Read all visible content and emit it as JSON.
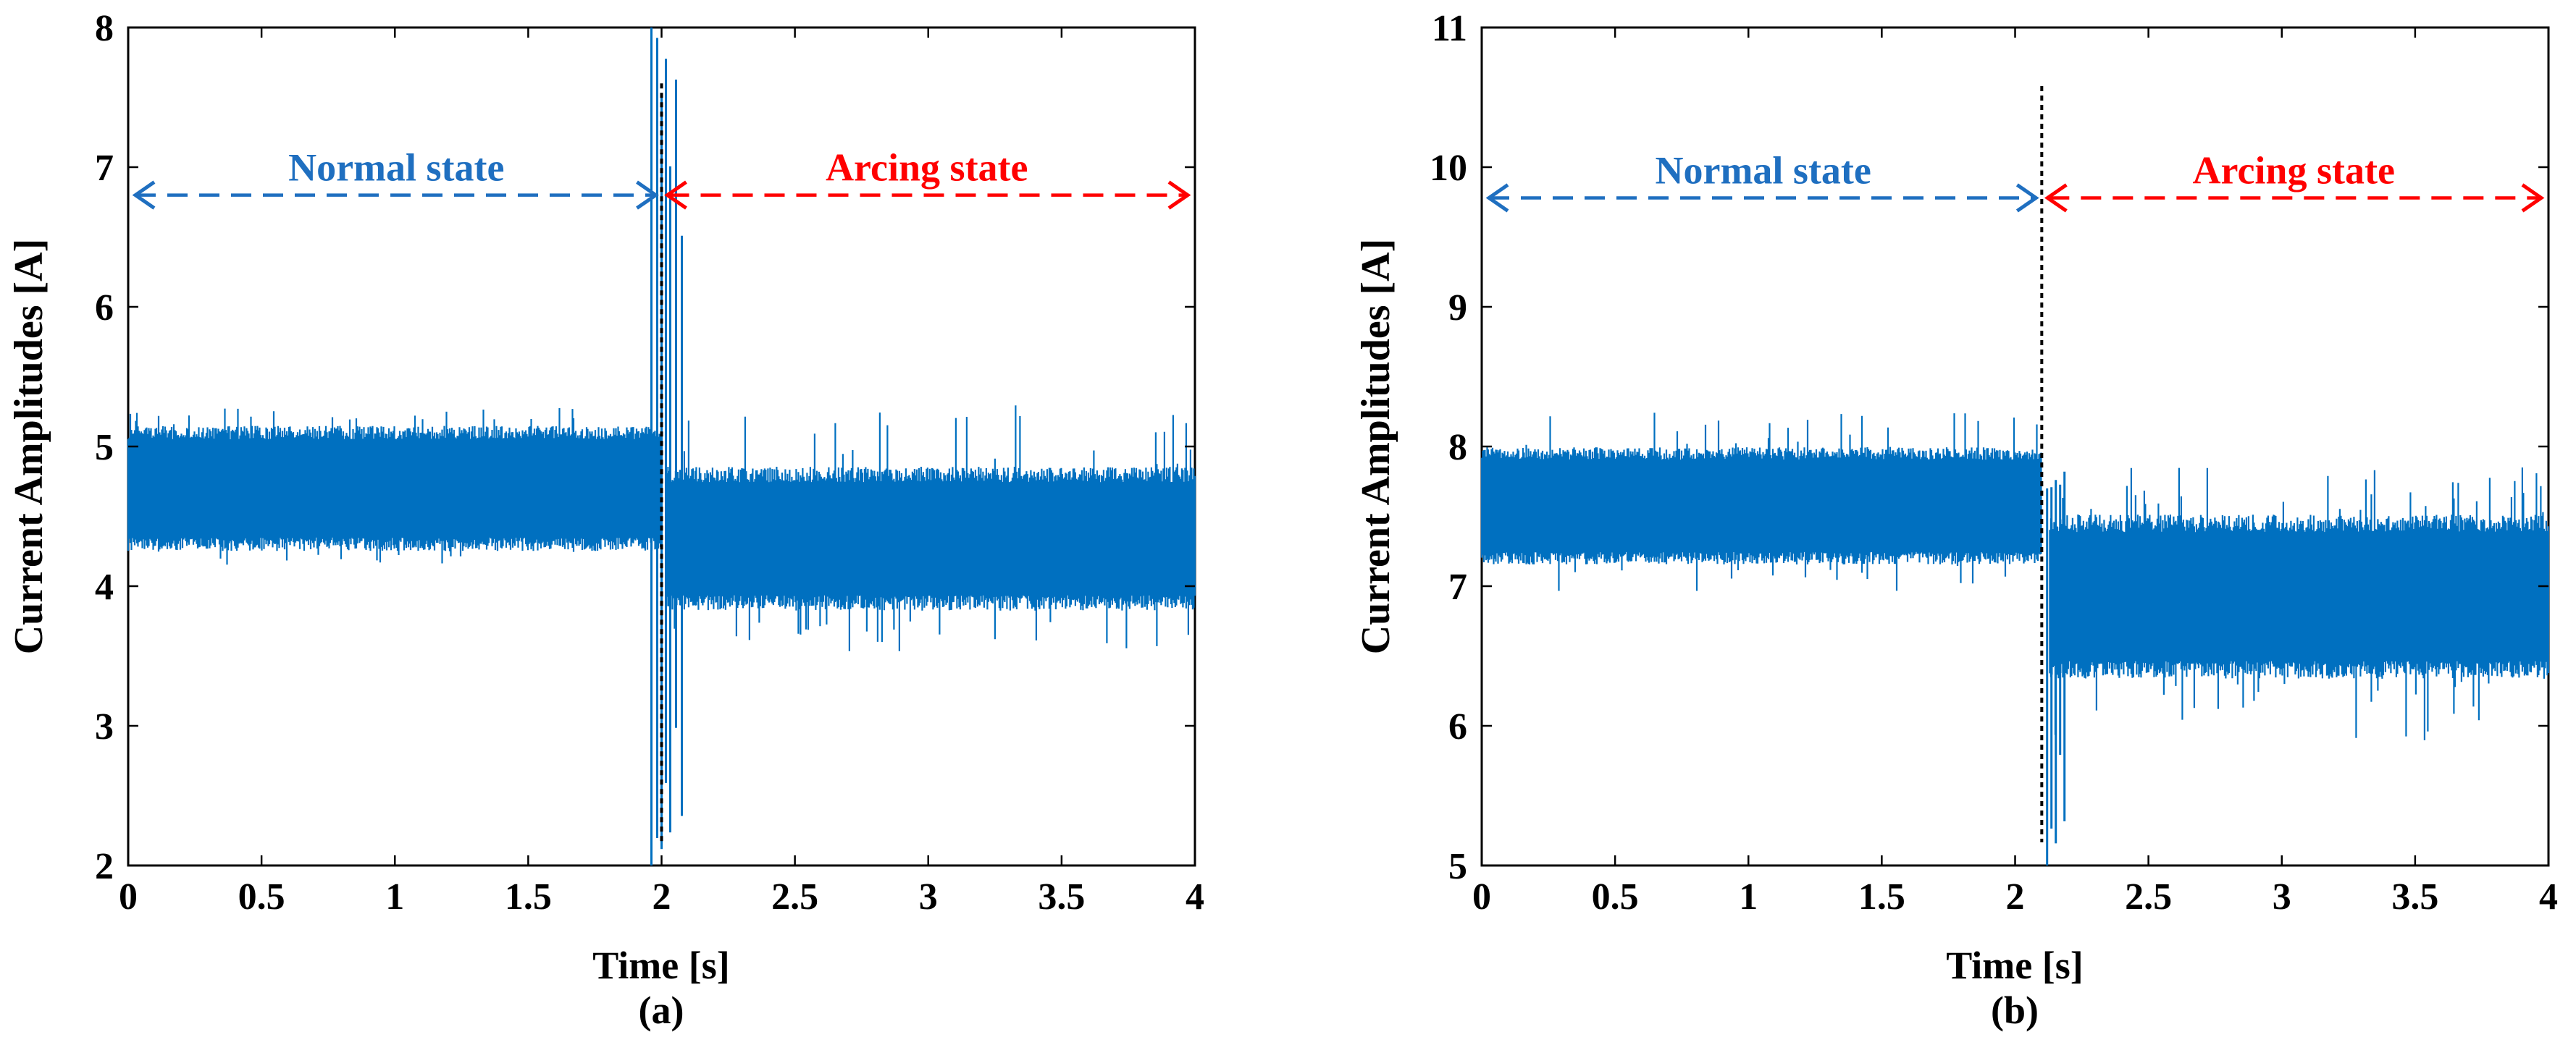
{
  "colors": {
    "signal": "#0070c0",
    "normal_arrow": "#1f6fc0",
    "arcing_arrow": "#ff0000",
    "marker_line": "#000000",
    "axis": "#000000"
  },
  "chart_data": [
    {
      "type": "line",
      "panel_label": "(a)",
      "xlabel": "Time [s]",
      "ylabel": "Current Amplitudes [A]",
      "xlim": [
        0,
        4
      ],
      "ylim": [
        2,
        8
      ],
      "xticks": [
        0,
        0.5,
        1,
        1.5,
        2,
        2.5,
        3,
        3.5,
        4
      ],
      "xtick_labels": [
        "0",
        "0.5",
        "1",
        "1.5",
        "2",
        "2.5",
        "3",
        "3.5",
        "4"
      ],
      "yticks": [
        2,
        3,
        4,
        5,
        6,
        7,
        8
      ],
      "ytick_labels": [
        "2",
        "3",
        "4",
        "5",
        "6",
        "7",
        "8"
      ],
      "transition_time": 2.0,
      "arrow_y": 6.8,
      "marker_line_top": 7.6,
      "normal_label": "Normal state",
      "arcing_label": "Arcing state",
      "signal": {
        "normal": {
          "t_start": 0,
          "t_end": 2.0,
          "mean": 4.7,
          "band_low": 4.3,
          "band_high": 5.1,
          "peak_low": 4.15,
          "peak_high": 5.28
        },
        "transient": {
          "t": 2.0,
          "min": 2.0,
          "max": 8.0
        },
        "arcing": {
          "t_start": 2.02,
          "t_end": 4.0,
          "mean": 4.35,
          "band_low": 3.88,
          "band_high": 4.8,
          "peak_low": 3.5,
          "peak_high": 5.35
        }
      }
    },
    {
      "type": "line",
      "panel_label": "(b)",
      "xlabel": "Time [s]",
      "ylabel": "Current Amplitudes [A]",
      "xlim": [
        0,
        4
      ],
      "ylim": [
        5,
        11
      ],
      "xticks": [
        0,
        0.5,
        1,
        1.5,
        2,
        2.5,
        3,
        3.5,
        4
      ],
      "xtick_labels": [
        "0",
        "0.5",
        "1",
        "1.5",
        "2",
        "2.5",
        "3",
        "3.5",
        "4"
      ],
      "yticks": [
        5,
        6,
        7,
        8,
        9,
        10,
        11
      ],
      "ytick_labels": [
        "5",
        "6",
        "7",
        "8",
        "9",
        "10",
        "11"
      ],
      "transition_time": 2.1,
      "arrow_y": 9.78,
      "marker_line_top": 10.58,
      "normal_label": "Normal state",
      "arcing_label": "Arcing state",
      "signal": {
        "normal": {
          "t_start": 0,
          "t_end": 2.1,
          "mean": 7.55,
          "band_low": 7.2,
          "band_high": 7.95,
          "peak_low": 6.95,
          "peak_high": 8.25
        },
        "transient": {
          "t": 2.12,
          "min": 5.0,
          "max": 7.7
        },
        "arcing": {
          "t_start": 2.13,
          "t_end": 4.0,
          "mean": 6.9,
          "band_low": 6.4,
          "band_high": 7.45,
          "peak_low": 5.85,
          "peak_high": 7.85
        }
      }
    }
  ]
}
